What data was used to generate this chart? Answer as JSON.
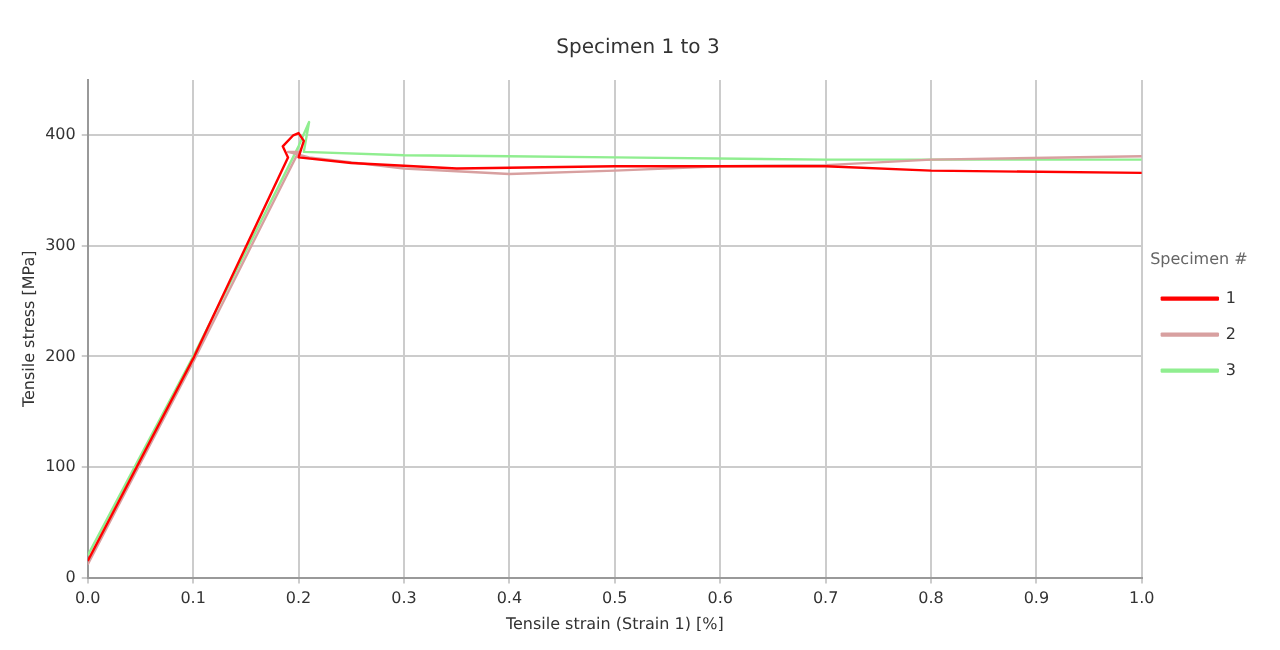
{
  "chart_data": {
    "type": "line",
    "title": "Specimen 1 to 3",
    "xlabel": "Tensile strain (Strain 1) [%]",
    "ylabel": "Tensile stress [MPa]",
    "legend_title": "Specimen #",
    "legend": "right",
    "grid": true,
    "xlim": [
      0,
      1
    ],
    "xticks": [
      {
        "value": 0,
        "label": "0.0"
      },
      0.1,
      0.2,
      0.3,
      0.4,
      0.5,
      0.6,
      0.7,
      0.8,
      0.9,
      {
        "value": 1,
        "label": "1.0"
      }
    ],
    "ylim": [
      0,
      450
    ],
    "yticks": [
      0,
      100,
      200,
      300,
      400
    ],
    "series": [
      {
        "name": "1",
        "color": "#ff0000",
        "x": [
          0,
          0.1,
          0.19,
          0.185,
          0.195,
          0.2,
          0.205,
          0.2,
          0.25,
          0.35,
          0.5,
          0.7,
          0.8,
          1.0
        ],
        "values": [
          15,
          198,
          380,
          390,
          400,
          402,
          395,
          380,
          375,
          370,
          372,
          372,
          368,
          366
        ]
      },
      {
        "name": "2",
        "color": "#d8a0a0",
        "x": [
          0,
          0.1,
          0.2,
          0.19,
          0.21,
          0.3,
          0.4,
          0.5,
          0.6,
          0.7,
          0.8,
          1.0
        ],
        "values": [
          12,
          195,
          385,
          385,
          380,
          370,
          365,
          368,
          372,
          373,
          378,
          381
        ]
      },
      {
        "name": "3",
        "color": "#90ee90",
        "x": [
          0,
          0.1,
          0.2,
          0.21,
          0.205,
          0.3,
          0.5,
          0.7,
          1.0
        ],
        "values": [
          20,
          200,
          390,
          412,
          385,
          382,
          380,
          378,
          378
        ]
      }
    ]
  }
}
